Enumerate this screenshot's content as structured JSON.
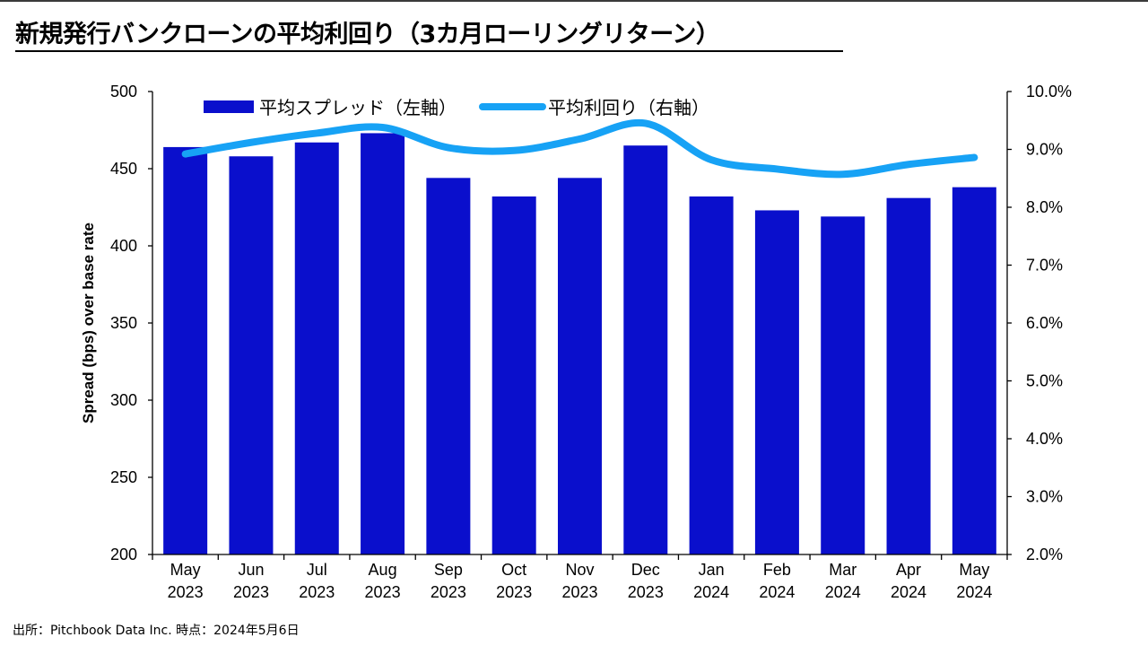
{
  "title": "新規発行バンクローンの平均利回り（3カ月ローリングリターン）",
  "source": "出所：Pitchbook Data Inc. 時点：2024年5月6日",
  "colors": {
    "bar": "#0a0fcc",
    "line": "#17a2f5"
  },
  "chart_data": {
    "type": "bar+line",
    "categories": [
      [
        "May",
        "2023"
      ],
      [
        "Jun",
        "2023"
      ],
      [
        "Jul",
        "2023"
      ],
      [
        "Aug",
        "2023"
      ],
      [
        "Sep",
        "2023"
      ],
      [
        "Oct",
        "2023"
      ],
      [
        "Nov",
        "2023"
      ],
      [
        "Dec",
        "2023"
      ],
      [
        "Jan",
        "2024"
      ],
      [
        "Feb",
        "2024"
      ],
      [
        "Mar",
        "2024"
      ],
      [
        "Apr",
        "2024"
      ],
      [
        "May",
        "2024"
      ]
    ],
    "series": [
      {
        "name": "平均スプレッド（左軸）",
        "type": "bar",
        "axis": "left",
        "values": [
          464,
          458,
          467,
          473,
          444,
          432,
          444,
          465,
          432,
          423,
          419,
          431,
          438
        ]
      },
      {
        "name": "平均利回り（右軸）",
        "type": "line",
        "axis": "right",
        "values": [
          8.92,
          9.12,
          9.28,
          9.38,
          9.03,
          8.98,
          9.18,
          9.45,
          8.82,
          8.66,
          8.57,
          8.74,
          8.86
        ]
      }
    ],
    "ylabel": "Spread (bps) over base rate",
    "ylim": [
      200,
      500
    ],
    "yticks": [
      "200",
      "250",
      "300",
      "350",
      "400",
      "450",
      "500"
    ],
    "y2lim": [
      2.0,
      10.0
    ],
    "y2ticks": [
      "2.0%",
      "3.0%",
      "4.0%",
      "5.0%",
      "6.0%",
      "7.0%",
      "8.0%",
      "9.0%",
      "10.0%"
    ],
    "legend": "top",
    "grid": false
  }
}
